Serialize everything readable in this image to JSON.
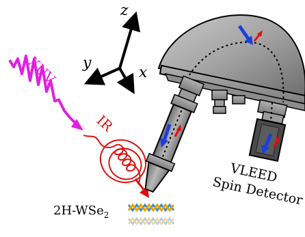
{
  "axes": {
    "z": "z",
    "y": "y",
    "x": "x"
  },
  "xuv": {
    "label": "XUV",
    "color": "#e020e0"
  },
  "ir": {
    "label": "IR",
    "color": "#e01010"
  },
  "sample": {
    "label_main": "2H-WSe",
    "label_sub": "2"
  },
  "detector": {
    "line1": "VLEED",
    "line2": "Spin Detector"
  },
  "colors": {
    "spin_blue": "#1a3fe0",
    "spin_red": "#e01010",
    "chamber_gray": "#8a8a8a"
  }
}
